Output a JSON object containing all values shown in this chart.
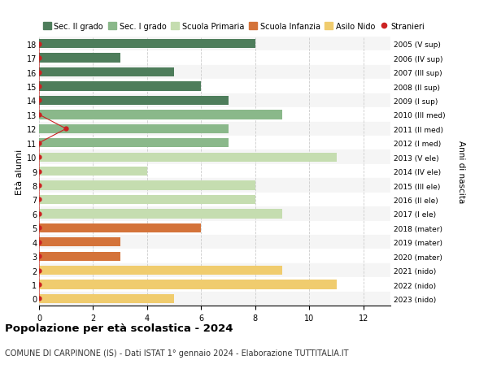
{
  "ages": [
    18,
    17,
    16,
    15,
    14,
    13,
    12,
    11,
    10,
    9,
    8,
    7,
    6,
    5,
    4,
    3,
    2,
    1,
    0
  ],
  "years": [
    "2005 (V sup)",
    "2006 (IV sup)",
    "2007 (III sup)",
    "2008 (II sup)",
    "2009 (I sup)",
    "2010 (III med)",
    "2011 (II med)",
    "2012 (I med)",
    "2013 (V ele)",
    "2014 (IV ele)",
    "2015 (III ele)",
    "2016 (II ele)",
    "2017 (I ele)",
    "2018 (mater)",
    "2019 (mater)",
    "2020 (mater)",
    "2021 (nido)",
    "2022 (nido)",
    "2023 (nido)"
  ],
  "values": [
    8,
    3,
    5,
    6,
    7,
    9,
    7,
    7,
    11,
    4,
    8,
    8,
    9,
    6,
    3,
    3,
    9,
    11,
    5
  ],
  "colors": [
    "#4e7d5b",
    "#4e7d5b",
    "#4e7d5b",
    "#4e7d5b",
    "#4e7d5b",
    "#8ab88a",
    "#8ab88a",
    "#8ab88a",
    "#c5ddb0",
    "#c5ddb0",
    "#c5ddb0",
    "#c5ddb0",
    "#c5ddb0",
    "#d4733a",
    "#d4733a",
    "#d4733a",
    "#f0cc6e",
    "#f0cc6e",
    "#f0cc6e"
  ],
  "stranieri_x": [
    0,
    0,
    0,
    0,
    0,
    0,
    1,
    0,
    0,
    0,
    0,
    0,
    0,
    0,
    0,
    0,
    0,
    0,
    0
  ],
  "legend_labels": [
    "Sec. II grado",
    "Sec. I grado",
    "Scuola Primaria",
    "Scuola Infanzia",
    "Asilo Nido",
    "Stranieri"
  ],
  "legend_colors": [
    "#4e7d5b",
    "#8ab88a",
    "#c5ddb0",
    "#d4733a",
    "#f0cc6e",
    "#cc2222"
  ],
  "title": "Popolazione per età scolastica - 2024",
  "subtitle": "COMUNE DI CARPINONE (IS) - Dati ISTAT 1° gennaio 2024 - Elaborazione TUTTITALIA.IT",
  "xlabel_right": "Anni di nascita",
  "ylabel": "Età alunni",
  "xlim": [
    0,
    13
  ],
  "ylim": [
    -0.5,
    18.5
  ],
  "xticks": [
    0,
    2,
    4,
    6,
    8,
    10,
    12
  ],
  "row_bg_even": "#f5f5f5",
  "row_bg_odd": "#ffffff",
  "grid_color": "#cccccc",
  "background_color": "#ffffff",
  "bar_height": 0.65
}
